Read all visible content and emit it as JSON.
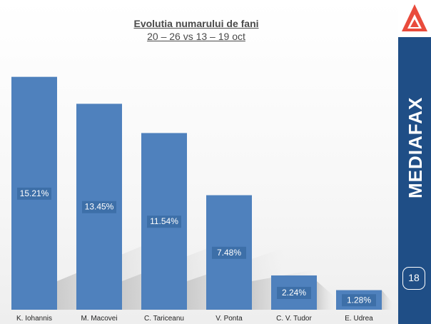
{
  "chart_data": {
    "type": "bar",
    "title": "Evolutia numarului de fani",
    "subtitle": "20 – 26 vs 13 – 19 oct",
    "categories": [
      "K. Iohannis",
      "M. Macovei",
      "C. Tariceanu",
      "V. Ponta",
      "C. V. Tudor",
      "E. Udrea"
    ],
    "values": [
      15.21,
      13.45,
      11.54,
      7.48,
      2.24,
      1.28
    ],
    "value_labels": [
      "15.21%",
      "13.45%",
      "11.54%",
      "7.48%",
      "2.24%",
      "1.28%"
    ],
    "ylim": [
      0,
      16.5
    ],
    "grid": false,
    "legend": "none",
    "bar_color": "#4f81bd"
  },
  "branding": {
    "name": "MEDIAFAX",
    "logo_icon": "mediafax-triangle-logo-icon",
    "accent_color": "#e94b3c",
    "sidebar_color": "#1f4e86"
  },
  "page": {
    "number": "18"
  }
}
